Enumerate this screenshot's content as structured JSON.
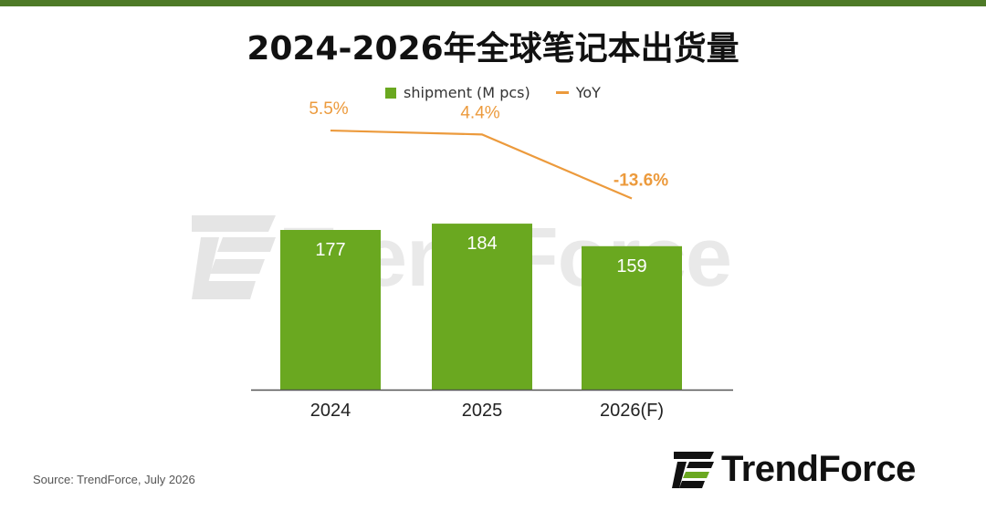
{
  "title": "2024-2026年全球笔记本出货量",
  "legend": {
    "bar_label": "shipment (M pcs)",
    "line_label": "YoY"
  },
  "colors": {
    "bar": "#6aa820",
    "line": "#ec9a3c",
    "top_bar": "#4e7a27"
  },
  "chart_data": {
    "type": "bar",
    "title": "2024-2026年全球笔记本出货量",
    "categories": [
      "2024",
      "2025",
      "2026(F)"
    ],
    "series": [
      {
        "name": "shipment (M pcs)",
        "type": "bar",
        "values": [
          177,
          184,
          159
        ],
        "labels": [
          "177",
          "184",
          "159"
        ]
      },
      {
        "name": "YoY",
        "type": "line",
        "values": [
          5.5,
          4.4,
          -13.6
        ],
        "labels": [
          "5.5%",
          "4.4%",
          "-13.6%"
        ]
      }
    ],
    "ylim": [
      0,
      200
    ],
    "grid": false,
    "legend_position": "top-center"
  },
  "watermark": {
    "text": "TrendForce"
  },
  "footer": {
    "source": "Source: TrendForce, July 2026"
  },
  "logo": {
    "text": "TrendForce"
  }
}
